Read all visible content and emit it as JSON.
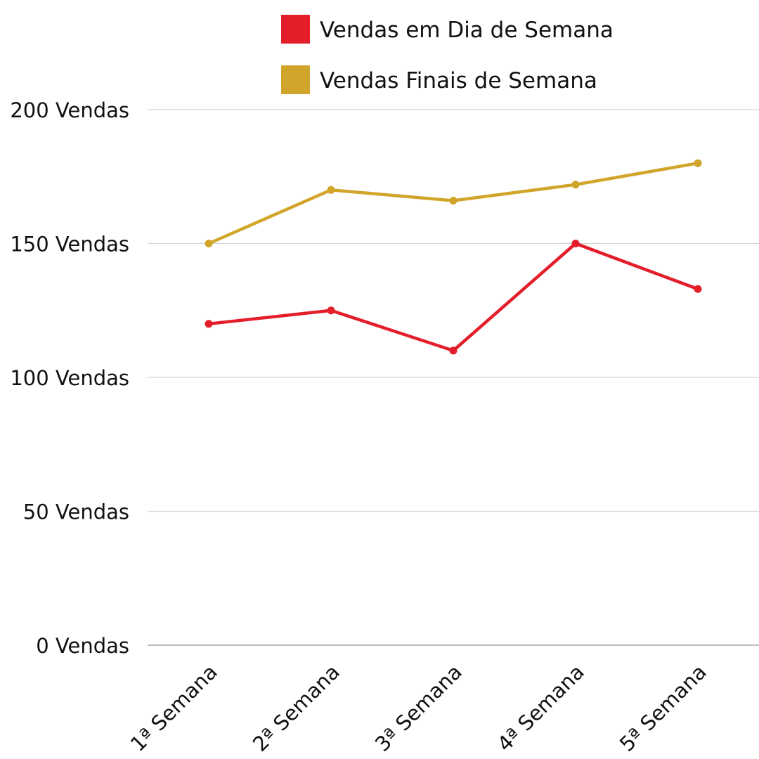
{
  "chart_data": {
    "type": "line",
    "categories": [
      "1ª Semana",
      "2ª Semana",
      "3ª Semana",
      "4ª Semana",
      "5ª Semana"
    ],
    "series": [
      {
        "name": "Vendas em Dia de Semana",
        "color": "#E31E2A",
        "values": [
          120,
          125,
          110,
          150,
          133
        ]
      },
      {
        "name": "Vendas Finais de Semana",
        "color": "#D1A52A",
        "values": [
          150,
          170,
          166,
          172,
          180
        ]
      }
    ],
    "y_ticks": [
      {
        "value": 0,
        "label": "0 Vendas"
      },
      {
        "value": 50,
        "label": "50 Vendas"
      },
      {
        "value": 100,
        "label": "100 Vendas"
      },
      {
        "value": 150,
        "label": "150 Vendas"
      },
      {
        "value": 200,
        "label": "200 Vendas"
      }
    ],
    "ylim": [
      0,
      200
    ],
    "grid": true,
    "legend_position": "top"
  }
}
